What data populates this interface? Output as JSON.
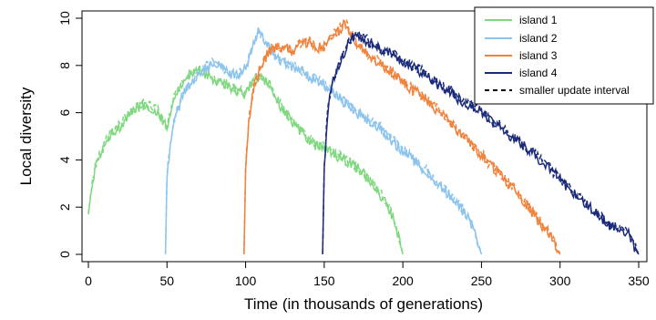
{
  "chart_data": {
    "type": "line",
    "xlabel": "Time (in thousands of generations)",
    "ylabel": "Local diversity",
    "xlim": [
      0,
      350
    ],
    "ylim": [
      0,
      10
    ],
    "x_ticks": [
      0,
      50,
      100,
      150,
      200,
      250,
      300,
      350
    ],
    "y_ticks": [
      0,
      2,
      4,
      6,
      8,
      10
    ],
    "legend_position": "top-right",
    "legend": [
      "island 1",
      "island 2",
      "island 3",
      "island 4",
      "smaller update interval"
    ],
    "series": [
      {
        "name": "island 1",
        "color": "#7fd87f",
        "x": [
          0,
          2,
          5,
          10,
          15,
          20,
          25,
          30,
          35,
          40,
          45,
          48,
          50,
          55,
          60,
          65,
          70,
          75,
          80,
          85,
          90,
          95,
          100,
          105,
          110,
          115,
          120,
          125,
          130,
          135,
          140,
          145,
          150,
          155,
          160,
          165,
          170,
          175,
          180,
          185,
          190,
          195,
          198,
          200
        ],
        "y": [
          1.7,
          2.8,
          3.8,
          4.6,
          5.2,
          5.4,
          5.9,
          6.2,
          6.3,
          6.2,
          6.0,
          5.6,
          5.3,
          6.7,
          7.3,
          7.7,
          7.8,
          7.6,
          7.4,
          7.2,
          7.1,
          6.9,
          6.8,
          7.4,
          7.5,
          7.2,
          6.5,
          6.0,
          5.6,
          5.2,
          4.9,
          4.6,
          4.5,
          4.3,
          4.1,
          3.9,
          3.7,
          3.4,
          3.0,
          2.6,
          2.1,
          1.4,
          0.5,
          0.0
        ]
      },
      {
        "name": "island 2",
        "color": "#8cc4ee",
        "x": [
          49,
          50,
          52,
          55,
          60,
          65,
          70,
          75,
          80,
          85,
          90,
          95,
          100,
          105,
          108,
          110,
          115,
          120,
          125,
          130,
          135,
          140,
          145,
          150,
          155,
          160,
          165,
          170,
          175,
          180,
          185,
          190,
          195,
          200,
          205,
          210,
          215,
          220,
          225,
          230,
          235,
          240,
          245,
          248,
          250
        ],
        "y": [
          0.0,
          3.2,
          4.6,
          5.8,
          6.7,
          7.2,
          7.6,
          7.9,
          8.1,
          7.9,
          7.6,
          7.6,
          7.9,
          8.9,
          9.4,
          9.2,
          8.7,
          8.3,
          8.1,
          7.9,
          7.8,
          7.5,
          7.4,
          7.2,
          6.9,
          6.6,
          6.3,
          6.0,
          5.8,
          5.6,
          5.4,
          5.0,
          4.7,
          4.4,
          4.1,
          3.8,
          3.5,
          3.1,
          2.8,
          2.5,
          2.1,
          1.7,
          1.1,
          0.4,
          0.0
        ]
      },
      {
        "name": "island 3",
        "color": "#f0823c",
        "x": [
          99,
          100,
          102,
          105,
          110,
          115,
          120,
          125,
          130,
          135,
          140,
          145,
          150,
          155,
          160,
          163,
          165,
          170,
          175,
          180,
          185,
          190,
          195,
          200,
          205,
          210,
          215,
          220,
          225,
          230,
          235,
          240,
          245,
          250,
          255,
          260,
          265,
          270,
          275,
          280,
          285,
          290,
          295,
          298,
          300
        ],
        "y": [
          0.0,
          3.6,
          5.6,
          7.0,
          8.0,
          8.6,
          8.8,
          8.7,
          8.6,
          8.9,
          9.0,
          8.7,
          8.8,
          9.2,
          9.5,
          9.9,
          9.6,
          9.0,
          8.6,
          8.3,
          8.1,
          7.9,
          7.6,
          7.3,
          7.0,
          6.8,
          6.5,
          6.2,
          5.9,
          5.6,
          5.2,
          4.9,
          4.5,
          4.2,
          3.8,
          3.5,
          3.1,
          2.8,
          2.4,
          2.0,
          1.5,
          1.1,
          0.7,
          0.2,
          0.0
        ]
      },
      {
        "name": "island 4",
        "color": "#1a2a7a",
        "x": [
          149,
          150,
          152,
          155,
          160,
          165,
          170,
          175,
          180,
          185,
          190,
          195,
          200,
          205,
          210,
          215,
          220,
          225,
          230,
          235,
          240,
          245,
          250,
          255,
          260,
          265,
          270,
          275,
          280,
          285,
          290,
          295,
          300,
          305,
          310,
          315,
          320,
          325,
          330,
          335,
          340,
          345,
          348,
          350
        ],
        "y": [
          0.0,
          3.7,
          5.9,
          7.2,
          8.1,
          8.9,
          9.3,
          9.1,
          8.9,
          8.7,
          8.6,
          8.4,
          8.2,
          8.0,
          7.8,
          7.6,
          7.3,
          7.1,
          6.9,
          6.6,
          6.4,
          6.2,
          6.0,
          5.7,
          5.5,
          5.2,
          4.9,
          4.7,
          4.4,
          4.1,
          3.8,
          3.5,
          3.2,
          2.8,
          2.5,
          2.2,
          1.9,
          1.6,
          1.3,
          1.1,
          1.0,
          0.7,
          0.2,
          0.0
        ]
      }
    ]
  }
}
